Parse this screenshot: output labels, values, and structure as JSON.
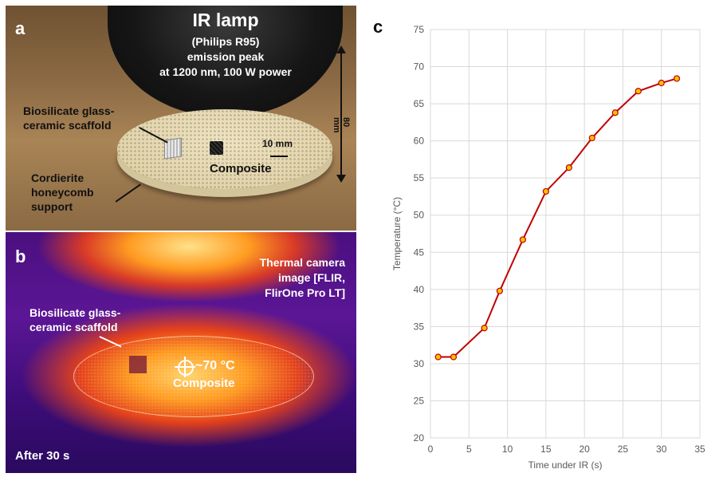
{
  "panel_a": {
    "letter": "a",
    "lamp_title": "IR lamp",
    "lamp_lines": [
      "(Philips R95)",
      "emission peak",
      "at 1200 nm, 100 W power"
    ],
    "dimension_label": "80 mm",
    "scaffold_label": [
      "Biosilicate glass-",
      "ceramic scaffold"
    ],
    "scale_bar_label": "10 mm",
    "composite_label": "Composite",
    "support_label": [
      "Cordierite",
      "honeycomb",
      "support"
    ]
  },
  "panel_b": {
    "letter": "b",
    "camera_label": [
      "Thermal camera",
      "image [FLIR,",
      "FlirOne Pro LT]"
    ],
    "scaffold_label": [
      "Biosilicate glass-",
      "ceramic scaffold"
    ],
    "temp_label": "~70 °C",
    "composite_label": "Composite",
    "time_label": "After 30 s"
  },
  "panel_c": {
    "letter": "c"
  },
  "chart_data": {
    "type": "line",
    "xlabel": "Time under IR (s)",
    "ylabel": "Temperature (°C)",
    "xlim": [
      0,
      35
    ],
    "ylim": [
      20,
      75
    ],
    "xticks": [
      0,
      5,
      10,
      15,
      20,
      25,
      30,
      35
    ],
    "yticks": [
      20,
      25,
      30,
      35,
      40,
      45,
      50,
      55,
      60,
      65,
      70,
      75
    ],
    "grid": true,
    "colors": {
      "line": "#c00000",
      "marker_fill": "#ffc000",
      "marker_edge": "#c00000"
    },
    "series": [
      {
        "x": [
          1,
          3,
          7,
          9,
          12,
          15,
          18,
          21,
          24,
          27,
          30,
          32
        ],
        "y": [
          30.9,
          30.9,
          34.8,
          39.8,
          46.7,
          53.2,
          56.4,
          60.4,
          63.8,
          66.7,
          67.8,
          68.4
        ]
      }
    ]
  }
}
